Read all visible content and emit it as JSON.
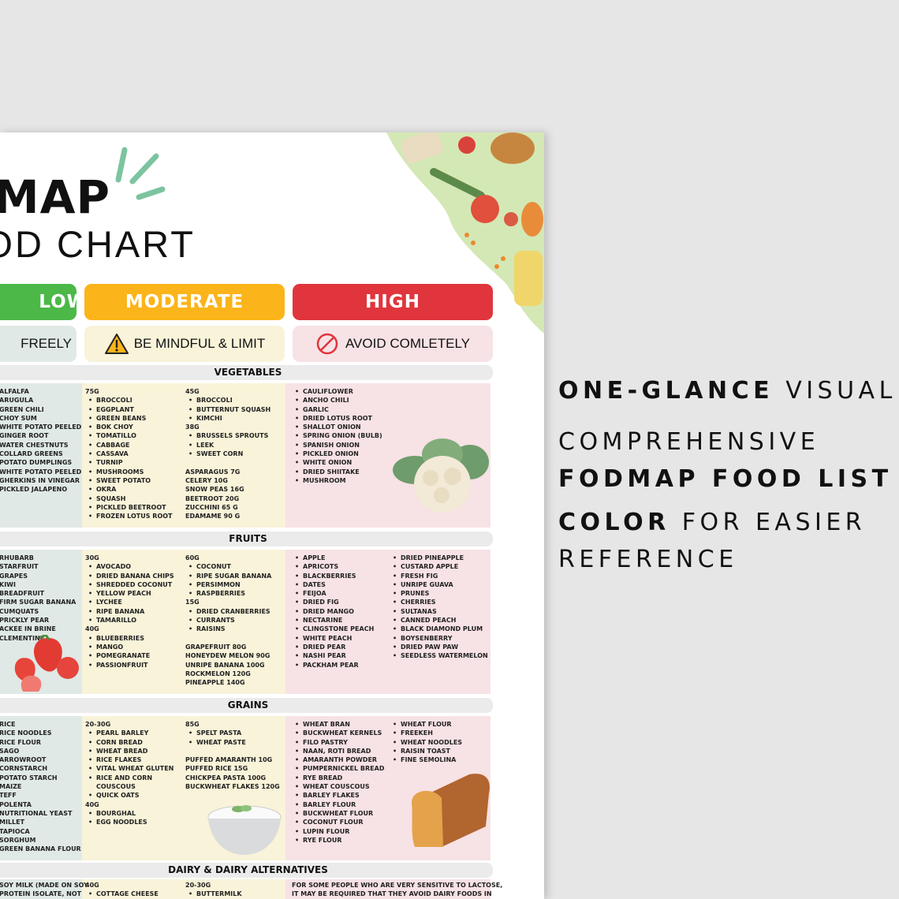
{
  "chart": {
    "title_line1": "FODMAP",
    "title_line2": "FOOD CHART",
    "levels": [
      {
        "label": "LOW",
        "note": "FREELY",
        "color": "#4cb848",
        "tint": "#e0e9e5"
      },
      {
        "label": "MODERATE",
        "note": "BE MINDFUL & LIMIT",
        "color": "#fbb419",
        "tint": "#f8f3d9",
        "icon": "warning-icon"
      },
      {
        "label": "HIGH",
        "note": "AVOID COMLETELY",
        "color": "#e0353c",
        "tint": "#f7e2e5",
        "icon": "prohibited-icon"
      }
    ],
    "sections": [
      {
        "title": "VEGETABLES",
        "low": [
          [
            "ALFALFA",
            "ARUGULA",
            "GREEN CHILI",
            "CHOY SUM",
            "WHITE POTATO PEELED",
            "GINGER ROOT",
            "WATER CHESTNUTS",
            "COLLARD GREENS",
            "POTATO DUMPLINGS",
            "WHITE POTATO PEELED",
            "GHERKINS IN VINEGAR",
            "PICKLED JALAPENO"
          ]
        ],
        "moderate": [
          [
            {
              "t": "75G"
            },
            {
              "t": "BROCCOLI",
              "b": 1
            },
            {
              "t": "EGGPLANT",
              "b": 1
            },
            {
              "t": "GREEN BEANS",
              "b": 1
            },
            {
              "t": "BOK CHOY",
              "b": 1
            },
            {
              "t": "TOMATILLO",
              "b": 1
            },
            {
              "t": "CABBAGE",
              "b": 1
            },
            {
              "t": "CASSAVA",
              "b": 1
            },
            {
              "t": "TURNIP",
              "b": 1
            },
            {
              "t": "MUSHROOMS",
              "b": 1
            },
            {
              "t": "SWEET POTATO",
              "b": 1
            },
            {
              "t": "OKRA",
              "b": 1
            },
            {
              "t": "SQUASH",
              "b": 1
            },
            {
              "t": "PICKLED BEETROOT",
              "b": 1
            },
            {
              "t": "FROZEN LOTUS ROOT",
              "b": 1
            }
          ],
          [
            {
              "t": "45G"
            },
            {
              "t": "BROCCOLI",
              "b": 1
            },
            {
              "t": "BUTTERNUT SQUASH",
              "b": 1
            },
            {
              "t": "KIMCHI",
              "b": 1
            },
            {
              "t": "38G"
            },
            {
              "t": "BRUSSELS SPROUTS",
              "b": 1
            },
            {
              "t": "LEEK",
              "b": 1
            },
            {
              "t": "SWEET CORN",
              "b": 1
            },
            {
              "t": ""
            },
            {
              "t": "ASPARAGUS 7G"
            },
            {
              "t": "CELERY 10G"
            },
            {
              "t": "SNOW PEAS 16G"
            },
            {
              "t": "BEETROOT 20G"
            },
            {
              "t": "ZUCCHINI 65 G"
            },
            {
              "t": "EDAMAME 90 G"
            }
          ]
        ],
        "high": [
          [
            "CAULIFLOWER",
            "ANCHO CHILI",
            "GARLIC",
            "DRIED LOTUS ROOT",
            "SHALLOT ONION",
            "SPRING ONION (BULB)",
            "SPANISH ONION",
            "PICKLED ONION",
            "WHITE ONION",
            "DRIED SHIITAKE",
            "MUSHROOM"
          ]
        ],
        "illustration": "cauliflower"
      },
      {
        "title": "FRUITS",
        "low": [
          [
            "RHUBARB",
            "STARFRUIT",
            "GRAPES",
            "KIWI",
            "BREADFRUIT",
            "FIRM SUGAR BANANA",
            "CUMQUATS",
            "PRICKLY PEAR",
            "ACKEE IN BRINE",
            "CLEMENTINE"
          ]
        ],
        "moderate": [
          [
            {
              "t": "30G"
            },
            {
              "t": "AVOCADO",
              "b": 1
            },
            {
              "t": "DRIED BANANA CHIPS",
              "b": 1
            },
            {
              "t": "SHREDDED COCONUT",
              "b": 1
            },
            {
              "t": "YELLOW PEACH",
              "b": 1
            },
            {
              "t": "LYCHEE",
              "b": 1
            },
            {
              "t": "RIPE BANANA",
              "b": 1
            },
            {
              "t": "TAMARILLO",
              "b": 1
            },
            {
              "t": "40G"
            },
            {
              "t": "BLUEBERRIES",
              "b": 1
            },
            {
              "t": "MANGO",
              "b": 1
            },
            {
              "t": "POMEGRANATE",
              "b": 1
            },
            {
              "t": "PASSIONFRUIT",
              "b": 1
            }
          ],
          [
            {
              "t": "60G"
            },
            {
              "t": "COCONUT",
              "b": 1
            },
            {
              "t": "RIPE SUGAR BANANA",
              "b": 1
            },
            {
              "t": "PERSIMMON",
              "b": 1
            },
            {
              "t": "RASPBERRIES",
              "b": 1
            },
            {
              "t": "15G"
            },
            {
              "t": "DRIED CRANBERRIES",
              "b": 1
            },
            {
              "t": "CURRANTS",
              "b": 1
            },
            {
              "t": "RAISINS",
              "b": 1
            },
            {
              "t": ""
            },
            {
              "t": "GRAPEFRUIT 80G"
            },
            {
              "t": "HONEYDEW MELON 90G"
            },
            {
              "t": "UNRIPE BANANA 100G"
            },
            {
              "t": "ROCKMELON 120G"
            },
            {
              "t": "PINEAPPLE 140G"
            }
          ]
        ],
        "high": [
          [
            "APPLE",
            "APRICOTS",
            "BLACKBERRIES",
            "DATES",
            "FEIJOA",
            "DRIED FIG",
            "DRIED MANGO",
            "NECTARINE",
            "CLINGSTONE PEACH",
            "WHITE PEACH",
            "DRIED PEAR",
            "NASHI PEAR",
            "PACKHAM PEAR"
          ],
          [
            "DRIED PINEAPPLE",
            "CUSTARD APPLE",
            "FRESH FIG",
            "UNRIPE GUAVA",
            "PRUNES",
            "CHERRIES",
            "SULTANAS",
            "CANNED PEACH",
            "BLACK DIAMOND PLUM",
            "BOYSENBERRY",
            "DRIED PAW PAW",
            "SEEDLESS WATERMELON"
          ]
        ],
        "illustration": "strawberries"
      },
      {
        "title": "GRAINS",
        "low": [
          [
            "RICE",
            "RICE NOODLES",
            "RICE FLOUR",
            "SAGO",
            "ARROWROOT",
            "CORNSTARCH",
            "POTATO STARCH",
            "MAIZE",
            "TEFF",
            "POLENTA",
            "NUTRITIONAL YEAST",
            "MILLET",
            "TAPIOCA",
            "SORGHUM",
            "GREEN BANANA FLOUR"
          ]
        ],
        "moderate": [
          [
            {
              "t": "20-30G"
            },
            {
              "t": "PEARL BARLEY",
              "b": 1
            },
            {
              "t": "CORN BREAD",
              "b": 1
            },
            {
              "t": "WHEAT BREAD",
              "b": 1
            },
            {
              "t": "RICE FLAKES",
              "b": 1
            },
            {
              "t": "VITAL WHEAT GLUTEN",
              "b": 1
            },
            {
              "t": "RICE AND CORN",
              "b": 1
            },
            {
              "t": "COUSCOUS",
              "i": 1
            },
            {
              "t": "QUICK OATS",
              "b": 1
            },
            {
              "t": "40G"
            },
            {
              "t": "BOURGHAL",
              "b": 1
            },
            {
              "t": "EGG NOODLES",
              "b": 1
            }
          ],
          [
            {
              "t": "85G"
            },
            {
              "t": "SPELT PASTA",
              "b": 1
            },
            {
              "t": "WHEAT PASTE",
              "b": 1
            },
            {
              "t": ""
            },
            {
              "t": "PUFFED AMARANTH 10G"
            },
            {
              "t": "PUFFED RICE 15G"
            },
            {
              "t": "CHICKPEA PASTA 100G"
            },
            {
              "t": "BUCKWHEAT FLAKES 120G"
            }
          ]
        ],
        "high": [
          [
            "WHEAT BRAN",
            "BUCKWHEAT KERNELS",
            "FILO PASTRY",
            "NAAN, ROTI BREAD",
            "AMARANTH POWDER",
            "PUMPERNICKEL BREAD",
            "RYE BREAD",
            "WHEAT COUSCOUS",
            "BARLEY FLAKES",
            "BARLEY FLOUR",
            "BUCKWHEAT FLOUR",
            "COCONUT FLOUR",
            "LUPIN FLOUR",
            "RYE FLOUR"
          ],
          [
            "WHEAT FLOUR",
            "FREEKEH",
            "WHEAT NOODLES",
            "RAISIN TOAST",
            "FINE SEMOLINA"
          ]
        ],
        "illustration": "rice-bowl"
      },
      {
        "title": "DAIRY & DAIRY ALTERNATIVES",
        "low": [
          [
            "SOY MILK (MADE ON SOY",
            "PROTEIN ISOLATE, NOT"
          ]
        ],
        "moderate": [
          [
            {
              "t": "40G"
            },
            {
              "t": "COTTAGE CHEESE",
              "b": 1
            }
          ],
          [
            {
              "t": "20-30G"
            },
            {
              "t": "BUTTERMILK",
              "b": 1
            }
          ]
        ],
        "high_note": [
          "FOR SOME PEOPLE WHO ARE VERY SENSITIVE TO LACTOSE,",
          "IT MAY BE REQUIRED THAT THEY AVOID DAIRY FOODS IN"
        ]
      }
    ]
  },
  "features": {
    "line1_bold": "ONE-GLANCE",
    "line1_rest": "VISUAL",
    "line2": "COMPREHENSIVE",
    "line3_bold": "FODMAP FOOD LIST",
    "line4_bold": "COLOR",
    "line4_rest": "FOR EASIER",
    "line5": "REFERENCE"
  },
  "colors": {
    "background": "#e6e6e6",
    "section_bar": "#ebebeb",
    "accent_green": "#7cc4a0"
  }
}
